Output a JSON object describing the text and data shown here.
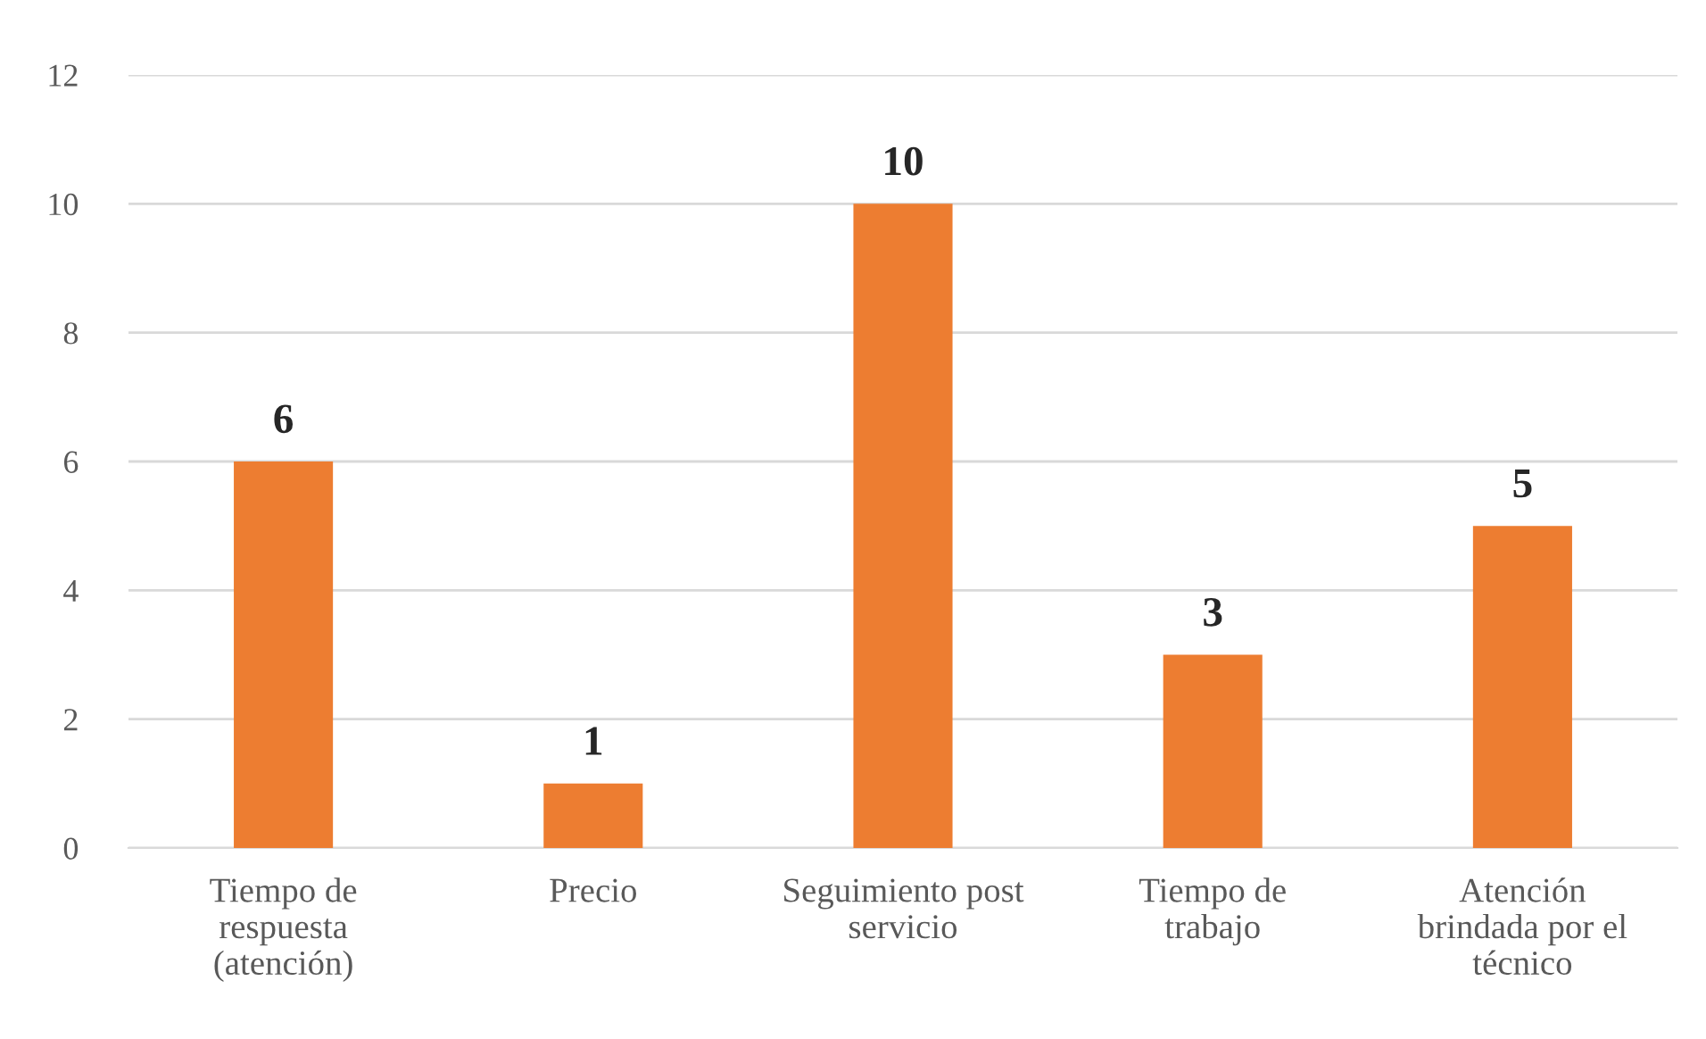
{
  "chart_data": {
    "type": "bar",
    "categories": [
      "Tiempo de\nrespuesta\n(atención)",
      "Precio",
      "Seguimiento post\nservicio",
      "Tiempo de\ntrabajo",
      "Atención\nbrindada por el\ntécnico"
    ],
    "values": [
      6,
      1,
      10,
      3,
      5
    ],
    "color": "#ed7d31",
    "ylim": [
      0,
      12
    ],
    "yticks": [
      0,
      2,
      4,
      6,
      8,
      10,
      12
    ],
    "grid": "y",
    "data_labels": true,
    "legend": false
  }
}
